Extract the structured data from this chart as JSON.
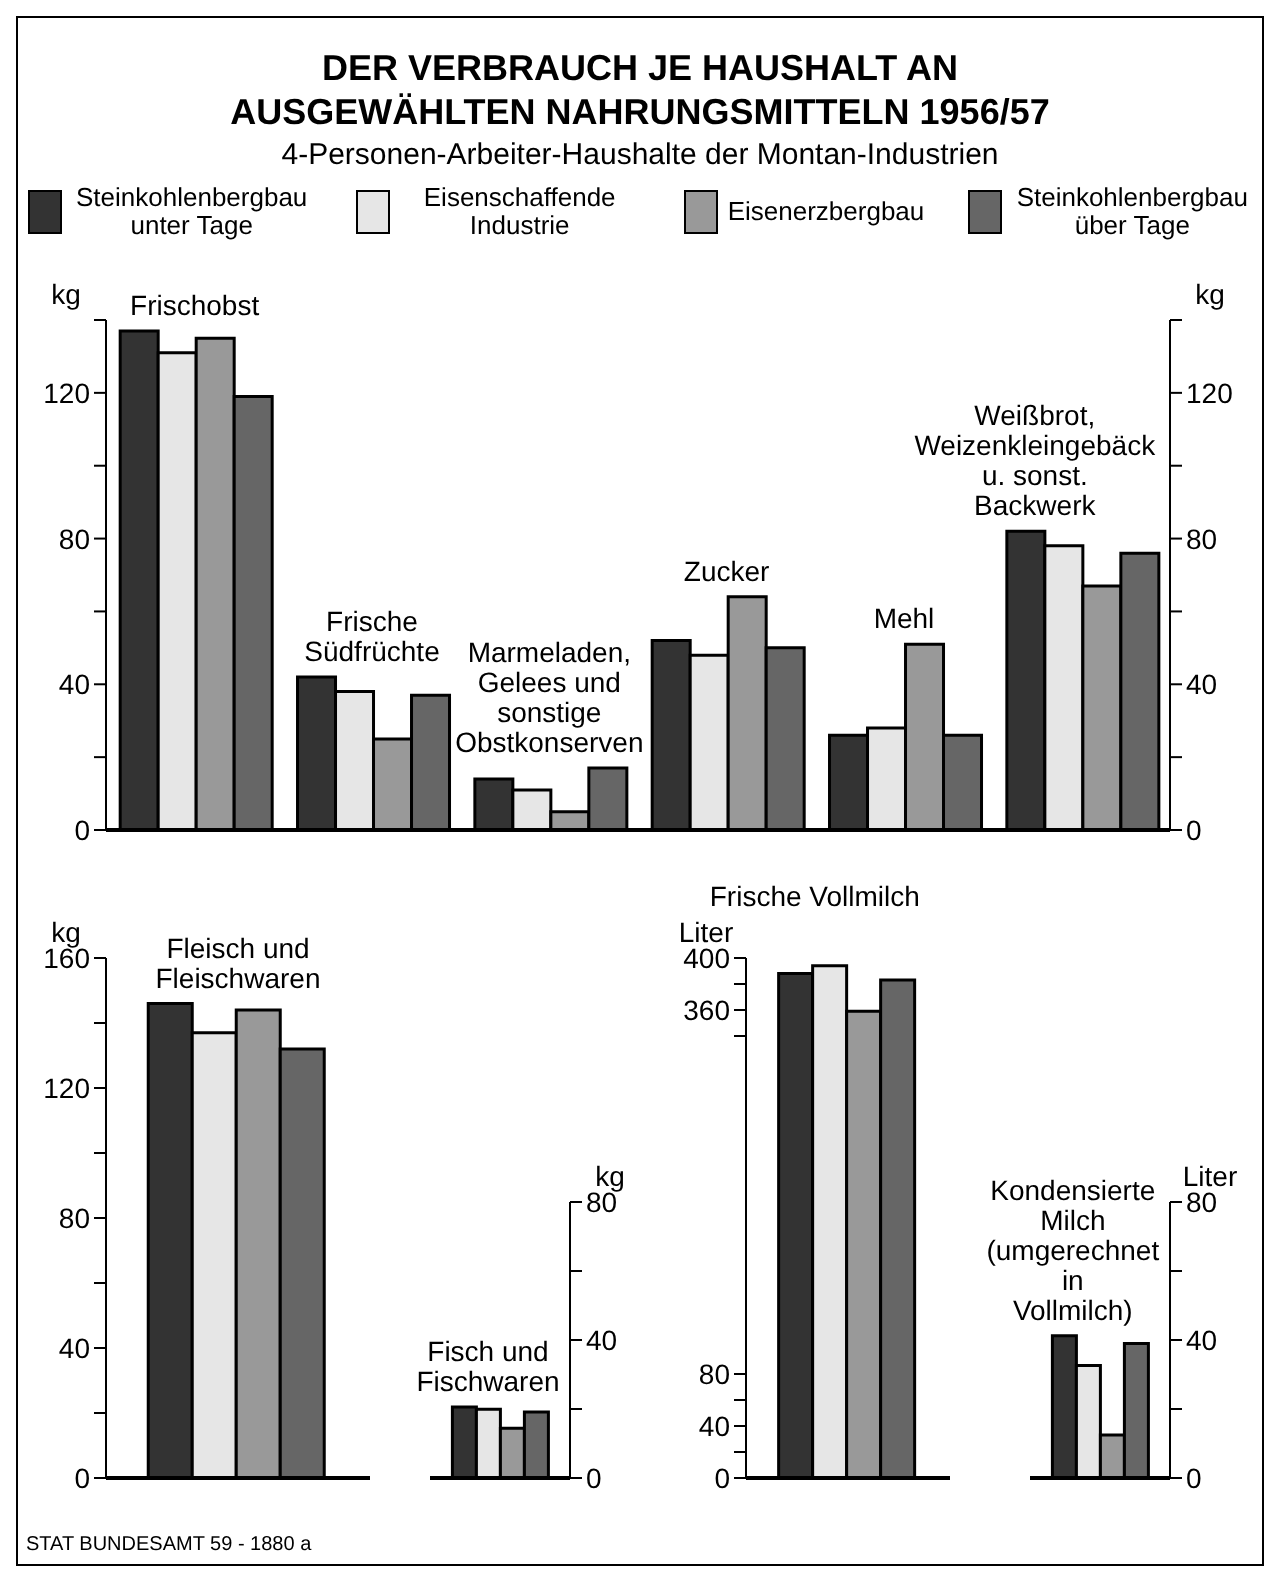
{
  "chart_data": [
    {
      "type": "bar",
      "title": "DER VERBRAUCH JE HAUSHALT AN AUSGEWÄHLTEN NAHRUNGSMITTELN 1956/57",
      "subtitle": "4-Personen-Arbeiter-Haushalte der Montan-Industrien",
      "ylabel": "kg",
      "y2label": "kg",
      "categories": [
        "Frischobst",
        "Frische Südfrüchte",
        "Marmeladen, Gelees und sonstige Obstkonserven",
        "Zucker",
        "Mehl",
        "Weißbrot, Weizenkleingebäck u. sonst. Backwerk"
      ],
      "series": [
        {
          "name": "Steinkohlenbergbau unter Tage",
          "color": "#333333",
          "values": [
            137,
            42,
            14,
            52,
            26,
            82
          ]
        },
        {
          "name": "Eisenschaffende Industrie",
          "color": "#e6e6e6",
          "values": [
            131,
            38,
            11,
            48,
            28,
            78
          ]
        },
        {
          "name": "Eisenerzbergbau",
          "color": "#999999",
          "values": [
            135,
            25,
            5,
            64,
            51,
            67
          ]
        },
        {
          "name": "Steinkohlenbergbau über Tage",
          "color": "#666666",
          "values": [
            119,
            37,
            17,
            50,
            26,
            76
          ]
        }
      ],
      "ylim": [
        0,
        140
      ],
      "yticks": [
        0,
        {
          "value": 20,
          "label": null
        },
        40,
        {
          "value": 60,
          "label": null
        },
        80,
        {
          "value": 100,
          "label": null
        },
        120,
        {
          "value": 140,
          "label": null
        }
      ],
      "y2lim": [
        0,
        140
      ],
      "y2ticks": [
        0,
        {
          "value": 20,
          "label": null
        },
        40,
        {
          "value": 60,
          "label": null
        },
        80,
        {
          "value": 100,
          "label": null
        },
        120,
        {
          "value": 140,
          "label": null
        }
      ],
      "legend": "top",
      "annotations": [
        "STAT BUNDESAMT 59 - 1880 a"
      ]
    },
    {
      "type": "bar",
      "ylabel": "kg",
      "categories": [
        "Fleisch und Fleischwaren"
      ],
      "series": [
        {
          "color": "#333333",
          "values": [
            146
          ]
        },
        {
          "color": "#e6e6e6",
          "values": [
            137
          ]
        },
        {
          "color": "#999999",
          "values": [
            144
          ]
        },
        {
          "color": "#666666",
          "values": [
            132
          ]
        }
      ],
      "ylim": [
        0,
        160
      ],
      "yticks": [
        0,
        {
          "value": 20,
          "label": null
        },
        40,
        {
          "value": 60,
          "label": null
        },
        80,
        {
          "value": 100,
          "label": null
        },
        120,
        {
          "value": 140,
          "label": null
        },
        160
      ]
    },
    {
      "type": "bar",
      "ylabel": "kg",
      "categories": [
        "Fisch und Fischwaren"
      ],
      "series": [
        {
          "color": "#333333",
          "values": [
            20.6
          ]
        },
        {
          "color": "#e6e6e6",
          "values": [
            19.9
          ]
        },
        {
          "color": "#999999",
          "values": [
            14.4
          ]
        },
        {
          "color": "#666666",
          "values": [
            19.1
          ]
        }
      ],
      "ylim": [
        0,
        80
      ],
      "yticks": [
        0,
        {
          "value": 20,
          "label": null
        },
        40,
        {
          "value": 60,
          "label": null
        },
        80
      ]
    },
    {
      "type": "bar",
      "ylabel": "Liter",
      "categories": [
        "Frische Vollmilch"
      ],
      "series": [
        {
          "color": "#333333",
          "values": [
            388
          ]
        },
        {
          "color": "#e6e6e6",
          "values": [
            394
          ]
        },
        {
          "color": "#999999",
          "values": [
            359
          ]
        },
        {
          "color": "#666666",
          "values": [
            383
          ]
        }
      ],
      "ylim": [
        0,
        400
      ],
      "yticks": [
        0,
        {
          "value": 20,
          "label": null
        },
        40,
        {
          "value": 60,
          "label": null
        },
        80,
        {
          "value": 340,
          "label": null
        },
        360,
        {
          "value": 380,
          "label": null
        },
        400
      ]
    },
    {
      "type": "bar",
      "ylabel": "Liter",
      "categories": [
        "Kondensierte Milch (umgerechnet in Vollmilch)"
      ],
      "series": [
        {
          "color": "#333333",
          "values": [
            41.2
          ]
        },
        {
          "color": "#e6e6e6",
          "values": [
            32.6
          ]
        },
        {
          "color": "#999999",
          "values": [
            12.5
          ]
        },
        {
          "color": "#666666",
          "values": [
            39
          ]
        }
      ],
      "ylim": [
        0,
        80
      ],
      "yticks": [
        0,
        {
          "value": 20,
          "label": null
        },
        40,
        {
          "value": 60,
          "label": null
        },
        80
      ]
    }
  ]
}
